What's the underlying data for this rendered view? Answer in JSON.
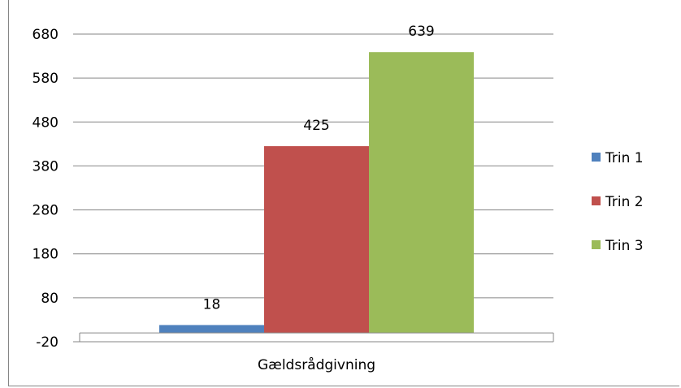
{
  "chart_data": {
    "type": "bar",
    "categories": [
      "Gældsrådgivning"
    ],
    "series": [
      {
        "name": "Trin 1",
        "values": [
          18
        ],
        "color": "#4F81BD"
      },
      {
        "name": "Trin 2",
        "values": [
          425
        ],
        "color": "#C0504D"
      },
      {
        "name": "Trin 3",
        "values": [
          639
        ],
        "color": "#9BBB59"
      }
    ],
    "ylim": [
      -20,
      680
    ],
    "yticks": [
      -20,
      80,
      180,
      280,
      380,
      480,
      580,
      680
    ],
    "grid": true,
    "legend": "right",
    "title": "",
    "xlabel": "",
    "ylabel": ""
  }
}
